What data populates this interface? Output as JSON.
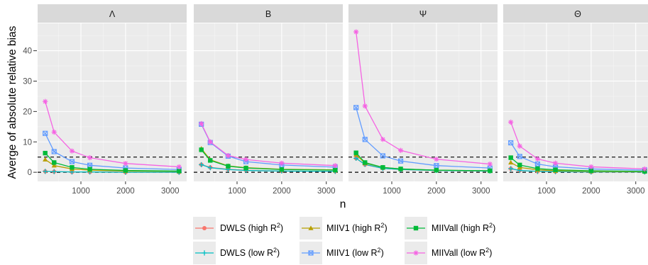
{
  "chart_data": {
    "type": "line",
    "ylabel": "Averge of absolute relative bias",
    "xlabel": "n",
    "x": [
      200,
      400,
      800,
      1200,
      2000,
      3200
    ],
    "ylim": [
      -3,
      49
    ],
    "xlim": [
      30,
      3370
    ],
    "y_ticks": [
      0,
      10,
      20,
      30,
      40
    ],
    "x_ticks": [
      1000,
      2000,
      3000
    ],
    "reference_lines": [
      0,
      5
    ],
    "grid": true,
    "legend_position": "bottom",
    "series_styles": [
      {
        "name": "DWLS (high R2)",
        "color": "#F8766D",
        "marker": "circle"
      },
      {
        "name": "DWLS (low R2)",
        "color": "#00BFC4",
        "marker": "plus"
      },
      {
        "name": "MIIV1 (high R2)",
        "color": "#B79F00",
        "marker": "triangle"
      },
      {
        "name": "MIIV1 (low R2)",
        "color": "#619CFF",
        "marker": "square-x"
      },
      {
        "name": "MIIVall (high R2)",
        "color": "#00BA38",
        "marker": "square"
      },
      {
        "name": "MIIVall (low R2)",
        "color": "#F564E3",
        "marker": "asterisk"
      }
    ],
    "panels": [
      {
        "title": "Λ",
        "series": [
          {
            "name": "DWLS (high R2)",
            "values": [
              0.3,
              0.2,
              0.1,
              0.1,
              0.0,
              0.0
            ]
          },
          {
            "name": "DWLS (low R2)",
            "values": [
              0.3,
              0.2,
              0.1,
              0.1,
              0.0,
              0.0
            ]
          },
          {
            "name": "MIIV1 (high R2)",
            "values": [
              4.2,
              2.2,
              1.1,
              0.7,
              0.4,
              0.3
            ]
          },
          {
            "name": "MIIV1 (low R2)",
            "values": [
              12.8,
              6.8,
              3.5,
              2.3,
              1.4,
              0.9
            ]
          },
          {
            "name": "MIIVall (high R2)",
            "values": [
              6.3,
              3.2,
              1.6,
              1.0,
              0.6,
              0.4
            ]
          },
          {
            "name": "MIIVall (low R2)",
            "values": [
              23.3,
              13.2,
              7.0,
              4.8,
              2.9,
              1.8
            ]
          }
        ]
      },
      {
        "title": "B",
        "series": [
          {
            "name": "DWLS (high R2)",
            "values": [
              2.5,
              1.6,
              1.0,
              0.7,
              0.4,
              0.3
            ]
          },
          {
            "name": "DWLS (low R2)",
            "values": [
              2.5,
              1.5,
              0.9,
              0.6,
              0.4,
              0.3
            ]
          },
          {
            "name": "MIIV1 (high R2)",
            "values": [
              7.8,
              4.1,
              2.1,
              1.5,
              1.0,
              0.8
            ]
          },
          {
            "name": "MIIV1 (low R2)",
            "values": [
              15.8,
              9.8,
              5.3,
              3.5,
              2.4,
              1.7
            ]
          },
          {
            "name": "MIIVall (high R2)",
            "values": [
              7.4,
              3.9,
              2.0,
              1.4,
              0.9,
              0.7
            ]
          },
          {
            "name": "MIIVall (low R2)",
            "values": [
              16.0,
              10.0,
              5.5,
              4.2,
              3.0,
              2.2
            ]
          }
        ]
      },
      {
        "title": "Ψ",
        "series": [
          {
            "name": "DWLS (high R2)",
            "values": [
              4.6,
              2.5,
              1.3,
              0.9,
              0.6,
              0.4
            ]
          },
          {
            "name": "DWLS (low R2)",
            "values": [
              4.6,
              2.6,
              1.3,
              0.9,
              0.6,
              0.4
            ]
          },
          {
            "name": "MIIV1 (high R2)",
            "values": [
              5.8,
              3.0,
              1.6,
              1.1,
              0.7,
              0.5
            ]
          },
          {
            "name": "MIIV1 (low R2)",
            "values": [
              21.3,
              10.8,
              5.4,
              3.7,
              2.2,
              1.4
            ]
          },
          {
            "name": "MIIVall (high R2)",
            "values": [
              6.4,
              3.2,
              1.6,
              1.1,
              0.7,
              0.5
            ]
          },
          {
            "name": "MIIVall (low R2)",
            "values": [
              46.2,
              21.8,
              10.8,
              7.2,
              4.3,
              2.7
            ]
          }
        ]
      },
      {
        "title": "Θ",
        "series": [
          {
            "name": "DWLS (high R2)",
            "values": [
              1.2,
              0.6,
              0.3,
              0.2,
              0.1,
              0.1
            ]
          },
          {
            "name": "DWLS (low R2)",
            "values": [
              1.2,
              0.6,
              0.3,
              0.2,
              0.1,
              0.1
            ]
          },
          {
            "name": "MIIV1 (high R2)",
            "values": [
              3.2,
              1.6,
              0.8,
              0.5,
              0.3,
              0.2
            ]
          },
          {
            "name": "MIIV1 (low R2)",
            "values": [
              9.7,
              5.2,
              2.7,
              1.8,
              1.1,
              0.7
            ]
          },
          {
            "name": "MIIVall (high R2)",
            "values": [
              4.8,
              2.4,
              1.2,
              0.8,
              0.5,
              0.3
            ]
          },
          {
            "name": "MIIVall (low R2)",
            "values": [
              16.5,
              8.6,
              4.4,
              3.0,
              1.8,
              1.1
            ]
          }
        ]
      }
    ]
  },
  "legend": {
    "items": [
      {
        "label": "DWLS (high R",
        "sup": "2",
        "close": ")"
      },
      {
        "label": "MIIV1 (high R",
        "sup": "2",
        "close": ")"
      },
      {
        "label": "MIIVall (high R",
        "sup": "2",
        "close": ")"
      },
      {
        "label": "DWLS (low R",
        "sup": "2",
        "close": ")"
      },
      {
        "label": "MIIV1 (low R",
        "sup": "2",
        "close": ")"
      },
      {
        "label": "MIIVall (low R",
        "sup": "2",
        "close": ")"
      }
    ]
  }
}
